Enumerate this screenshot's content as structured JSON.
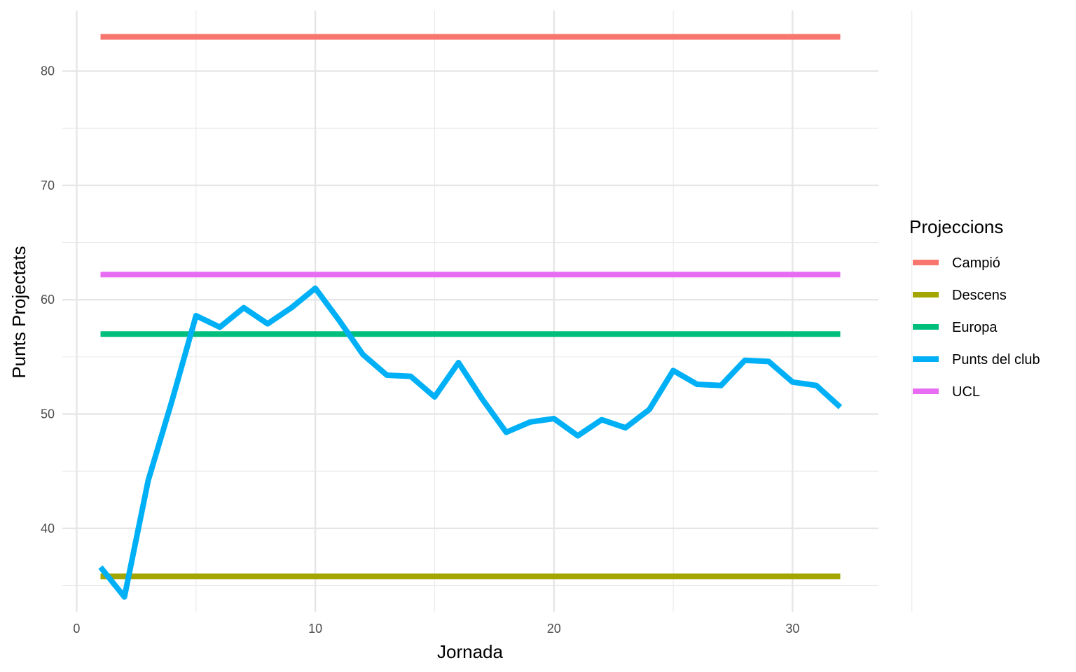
{
  "chart_data": {
    "type": "line",
    "xlabel": "Jornada",
    "ylabel": "Punts Projectats",
    "xlim": [
      -0.6,
      33.6
    ],
    "ylim": [
      32.7,
      85.3
    ],
    "x_ticks": [
      0,
      10,
      20,
      30
    ],
    "x_tick_labels": [
      "0",
      "10",
      "20",
      "30"
    ],
    "y_ticks": [
      40,
      50,
      60,
      70,
      80
    ],
    "y_tick_labels": [
      "40",
      "50",
      "60",
      "70",
      "80"
    ],
    "grid": true,
    "legend": {
      "title": "Projeccions",
      "position": "right",
      "entries": [
        "Campió",
        "Descens",
        "Europa",
        "Punts del club",
        "UCL"
      ]
    },
    "series": [
      {
        "name": "Campió",
        "color": "#F8766D",
        "x": [
          1,
          32
        ],
        "y": [
          83,
          83
        ]
      },
      {
        "name": "Descens",
        "color": "#A3A500",
        "x": [
          1,
          32
        ],
        "y": [
          35.8,
          35.8
        ]
      },
      {
        "name": "Europa",
        "color": "#00BF7D",
        "x": [
          1,
          32
        ],
        "y": [
          57,
          57
        ]
      },
      {
        "name": "Punts del club",
        "color": "#00B0F6",
        "x": [
          1,
          2,
          3,
          4,
          5,
          6,
          7,
          8,
          9,
          10,
          11,
          12,
          13,
          14,
          15,
          16,
          17,
          18,
          19,
          20,
          21,
          22,
          23,
          24,
          25,
          26,
          27,
          28,
          29,
          30,
          31,
          32
        ],
        "y": [
          36.6,
          34.0,
          44.2,
          51.2,
          58.6,
          57.6,
          59.3,
          57.9,
          59.3,
          61.0,
          58.2,
          55.2,
          53.4,
          53.3,
          51.5,
          54.5,
          51.3,
          48.4,
          49.3,
          49.6,
          48.1,
          49.5,
          48.8,
          50.4,
          53.8,
          52.6,
          52.5,
          54.7,
          54.6,
          52.8,
          52.5,
          50.6
        ]
      },
      {
        "name": "UCL",
        "color": "#E76BF3",
        "x": [
          1,
          32
        ],
        "y": [
          62.2,
          62.2
        ]
      }
    ]
  }
}
